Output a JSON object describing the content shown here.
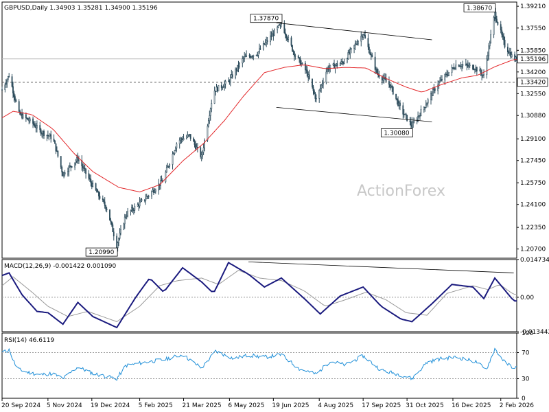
{
  "chart_data": [
    {
      "panel": "price",
      "type": "candlestick",
      "title": "GBPUSD,Daily  1.34903 1.35281 1.34900 1.35196",
      "watermark": "ActionForex",
      "ylim": [
        1.2,
        1.3953
      ],
      "yticks": [
        "1.39210",
        "1.37550",
        "1.35850",
        "1.34200",
        "1.32550",
        "1.30880",
        "1.29100",
        "1.27450",
        "1.25750",
        "1.24100",
        "1.22350",
        "1.20700"
      ],
      "last_price": {
        "value": 1.35196,
        "label": "1.35196"
      },
      "support": {
        "value": 1.3342,
        "label": "1.33420"
      },
      "annotations": [
        {
          "label": "1.37870",
          "value": 1.3787,
          "date": "2025-06-27"
        },
        {
          "label": "1.38670",
          "value": 1.3867,
          "date": "2026-01-27"
        },
        {
          "label": "1.30080",
          "value": 1.3008,
          "date": "2025-11-05"
        },
        {
          "label": "1.20990",
          "value": 1.2099,
          "date": "2025-01-13"
        }
      ],
      "channel": [
        {
          "from": [
            "2025-06-22",
            1.3795
          ],
          "to": [
            "2025-11-25",
            1.3665
          ]
        },
        {
          "from": [
            "2025-06-22",
            1.315
          ],
          "to": [
            "2025-11-25",
            1.304
          ]
        }
      ],
      "close_path": [
        [
          "2024-09-20",
          1.3285
        ],
        [
          "2024-09-27",
          1.3395
        ],
        [
          "2024-10-07",
          1.31
        ],
        [
          "2024-10-20",
          1.3035
        ],
        [
          "2024-10-28",
          1.297
        ],
        [
          "2024-11-10",
          1.2915
        ],
        [
          "2024-11-20",
          1.264
        ],
        [
          "2024-12-05",
          1.276
        ],
        [
          "2024-12-20",
          1.255
        ],
        [
          "2025-01-03",
          1.238
        ],
        [
          "2025-01-13",
          1.2099
        ],
        [
          "2025-01-22",
          1.233
        ],
        [
          "2025-02-10",
          1.245
        ],
        [
          "2025-02-28",
          1.259
        ],
        [
          "2025-03-15",
          1.2895
        ],
        [
          "2025-03-27",
          1.2935
        ],
        [
          "2025-04-08",
          1.277
        ],
        [
          "2025-04-20",
          1.3275
        ],
        [
          "2025-05-05",
          1.3345
        ],
        [
          "2025-05-20",
          1.3525
        ],
        [
          "2025-06-03",
          1.3565
        ],
        [
          "2025-06-27",
          1.3787
        ],
        [
          "2025-07-10",
          1.356
        ],
        [
          "2025-07-22",
          1.3425
        ],
        [
          "2025-08-01",
          1.321
        ],
        [
          "2025-08-12",
          1.3445
        ],
        [
          "2025-08-28",
          1.3495
        ],
        [
          "2025-09-17",
          1.3715
        ],
        [
          "2025-10-01",
          1.341
        ],
        [
          "2025-10-14",
          1.332
        ],
        [
          "2025-10-25",
          1.313
        ],
        [
          "2025-11-05",
          1.3008
        ],
        [
          "2025-11-18",
          1.3165
        ],
        [
          "2025-12-01",
          1.333
        ],
        [
          "2025-12-20",
          1.348
        ],
        [
          "2026-01-07",
          1.3455
        ],
        [
          "2026-01-16",
          1.339
        ],
        [
          "2026-01-27",
          1.3867
        ],
        [
          "2026-02-06",
          1.3622
        ],
        [
          "2026-02-15",
          1.3519
        ]
      ],
      "ma_path": [
        [
          "2024-09-20",
          1.307
        ],
        [
          "2024-10-01",
          1.312
        ],
        [
          "2024-10-20",
          1.3095
        ],
        [
          "2024-11-10",
          1.2985
        ],
        [
          "2024-12-01",
          1.28
        ],
        [
          "2024-12-20",
          1.266
        ],
        [
          "2025-01-15",
          1.254
        ],
        [
          "2025-02-05",
          1.2505
        ],
        [
          "2025-02-25",
          1.256
        ],
        [
          "2025-03-20",
          1.274
        ],
        [
          "2025-04-10",
          1.2875
        ],
        [
          "2025-05-01",
          1.305
        ],
        [
          "2025-05-20",
          1.3235
        ],
        [
          "2025-06-10",
          1.3415
        ],
        [
          "2025-06-30",
          1.3455
        ],
        [
          "2025-07-20",
          1.3475
        ],
        [
          "2025-08-10",
          1.3445
        ],
        [
          "2025-08-30",
          1.3455
        ],
        [
          "2025-09-20",
          1.345
        ],
        [
          "2025-10-10",
          1.337
        ],
        [
          "2025-10-30",
          1.3305
        ],
        [
          "2025-11-15",
          1.3265
        ],
        [
          "2025-12-05",
          1.3325
        ],
        [
          "2025-12-25",
          1.3375
        ],
        [
          "2026-01-10",
          1.3395
        ],
        [
          "2026-01-27",
          1.346
        ],
        [
          "2026-02-15",
          1.3515
        ]
      ]
    },
    {
      "panel": "macd",
      "type": "line",
      "title": "MACD(12,26,9) -0.001422 0.001090",
      "ylim": [
        -0.0134,
        0.0147
      ],
      "yticks": [
        {
          "value": 0.014734,
          "label": "0.014734"
        },
        {
          "value": 0.0,
          "label": "0.00"
        },
        {
          "value": -0.013442,
          "label": "-0.013442"
        }
      ],
      "series": [
        {
          "role": "macd",
          "path": [
            [
              "2024-09-20",
              0.0085
            ],
            [
              "2024-09-27",
              0.0095
            ],
            [
              "2024-10-10",
              0.001
            ],
            [
              "2024-10-25",
              -0.0055
            ],
            [
              "2024-11-05",
              -0.006
            ],
            [
              "2024-11-20",
              -0.0105
            ],
            [
              "2024-12-05",
              -0.002
            ],
            [
              "2024-12-20",
              -0.0075
            ],
            [
              "2025-01-13",
              -0.0118
            ],
            [
              "2025-02-01",
              0.0
            ],
            [
              "2025-02-15",
              0.0075
            ],
            [
              "2025-03-01",
              0.002
            ],
            [
              "2025-03-20",
              0.0115
            ],
            [
              "2025-04-08",
              0.006
            ],
            [
              "2025-04-20",
              0.0015
            ],
            [
              "2025-05-05",
              0.0135
            ],
            [
              "2025-05-25",
              0.009
            ],
            [
              "2025-06-10",
              0.004
            ],
            [
              "2025-06-27",
              0.0075
            ],
            [
              "2025-07-20",
              -0.0005
            ],
            [
              "2025-08-05",
              -0.0065
            ],
            [
              "2025-08-25",
              0.0005
            ],
            [
              "2025-09-17",
              0.004
            ],
            [
              "2025-10-05",
              -0.0035
            ],
            [
              "2025-10-25",
              -0.0085
            ],
            [
              "2025-11-05",
              -0.0095
            ],
            [
              "2025-11-25",
              -0.0025
            ],
            [
              "2025-12-15",
              0.005
            ],
            [
              "2026-01-05",
              0.004
            ],
            [
              "2026-01-16",
              -0.0005
            ],
            [
              "2026-01-27",
              0.0075
            ],
            [
              "2026-02-15",
              -0.0014
            ]
          ]
        },
        {
          "role": "signal",
          "path": [
            [
              "2024-09-20",
              0.0045
            ],
            [
              "2024-10-01",
              0.008
            ],
            [
              "2024-10-20",
              0.002
            ],
            [
              "2024-11-05",
              -0.0035
            ],
            [
              "2024-11-25",
              -0.0075
            ],
            [
              "2024-12-15",
              -0.0055
            ],
            [
              "2025-01-13",
              -0.0095
            ],
            [
              "2025-02-05",
              -0.0035
            ],
            [
              "2025-02-25",
              0.0045
            ],
            [
              "2025-03-15",
              0.0065
            ],
            [
              "2025-04-08",
              0.0075
            ],
            [
              "2025-04-25",
              0.005
            ],
            [
              "2025-05-15",
              0.0105
            ],
            [
              "2025-06-05",
              0.0075
            ],
            [
              "2025-06-27",
              0.0065
            ],
            [
              "2025-07-20",
              0.0025
            ],
            [
              "2025-08-10",
              -0.0035
            ],
            [
              "2025-08-30",
              -0.001
            ],
            [
              "2025-09-20",
              0.002
            ],
            [
              "2025-10-10",
              -0.001
            ],
            [
              "2025-10-30",
              -0.006
            ],
            [
              "2025-11-20",
              -0.007
            ],
            [
              "2025-12-10",
              0.0015
            ],
            [
              "2026-01-05",
              0.0045
            ],
            [
              "2026-01-20",
              0.003
            ],
            [
              "2026-02-01",
              0.005
            ],
            [
              "2026-02-15",
              0.0011
            ]
          ]
        }
      ],
      "trendline": {
        "from": [
          "2025-05-25",
          0.0138
        ],
        "to": [
          "2026-02-15",
          0.0095
        ]
      }
    },
    {
      "panel": "rsi",
      "type": "line",
      "title": "RSI(14) 46.6119",
      "ylim": [
        0,
        100
      ],
      "yticks": [
        {
          "value": 100,
          "label": "100"
        },
        {
          "value": 70,
          "label": "70"
        },
        {
          "value": 30,
          "label": "30"
        },
        {
          "value": 0,
          "label": "0"
        }
      ],
      "levels": [
        70,
        30
      ],
      "path": [
        [
          "2024-09-20",
          70
        ],
        [
          "2024-09-27",
          74
        ],
        [
          "2024-10-05",
          45
        ],
        [
          "2024-10-15",
          40
        ],
        [
          "2024-10-28",
          36
        ],
        [
          "2024-11-10",
          38
        ],
        [
          "2024-11-20",
          30
        ],
        [
          "2024-12-05",
          48
        ],
        [
          "2024-12-20",
          38
        ],
        [
          "2025-01-13",
          30
        ],
        [
          "2025-01-22",
          50
        ],
        [
          "2025-02-10",
          55
        ],
        [
          "2025-03-01",
          59
        ],
        [
          "2025-03-20",
          67
        ],
        [
          "2025-04-08",
          46
        ],
        [
          "2025-04-22",
          72
        ],
        [
          "2025-05-10",
          61
        ],
        [
          "2025-05-25",
          66
        ],
        [
          "2025-06-10",
          63
        ],
        [
          "2025-06-27",
          67
        ],
        [
          "2025-07-15",
          45
        ],
        [
          "2025-08-01",
          37
        ],
        [
          "2025-08-15",
          57
        ],
        [
          "2025-08-30",
          51
        ],
        [
          "2025-09-17",
          65
        ],
        [
          "2025-10-05",
          43
        ],
        [
          "2025-10-25",
          36
        ],
        [
          "2025-11-05",
          30
        ],
        [
          "2025-11-20",
          55
        ],
        [
          "2025-12-05",
          61
        ],
        [
          "2025-12-20",
          63
        ],
        [
          "2026-01-10",
          55
        ],
        [
          "2026-01-18",
          42
        ],
        [
          "2026-01-27",
          76
        ],
        [
          "2026-02-06",
          55
        ],
        [
          "2026-02-15",
          47
        ]
      ]
    }
  ],
  "x_axis": {
    "ticks": [
      {
        "date": "2024-09-20",
        "label": "20 Sep 2024"
      },
      {
        "date": "2024-11-05",
        "label": "5 Nov 2024"
      },
      {
        "date": "2024-12-19",
        "label": "19 Dec 2024"
      },
      {
        "date": "2025-02-05",
        "label": "5 Feb 2025"
      },
      {
        "date": "2025-03-21",
        "label": "21 Mar 2025"
      },
      {
        "date": "2025-05-06",
        "label": "6 May 2025"
      },
      {
        "date": "2025-06-19",
        "label": "19 Jun 2025"
      },
      {
        "date": "2025-08-04",
        "label": "4 Aug 2025"
      },
      {
        "date": "2025-09-17",
        "label": "17 Sep 2025"
      },
      {
        "date": "2025-10-31",
        "label": "31 Oct 2025"
      },
      {
        "date": "2025-12-16",
        "label": "16 Dec 2025"
      },
      {
        "date": "2026-02-02",
        "label": "2 Feb 2026"
      }
    ]
  },
  "colors": {
    "candles": "#2b4a5a",
    "moving_average": "#e3272a",
    "macd": "#1a1a7e",
    "signal": "#9a9a9a",
    "rsi": "#1f8fd8",
    "reference": "#999999",
    "trendline": "#000000"
  }
}
